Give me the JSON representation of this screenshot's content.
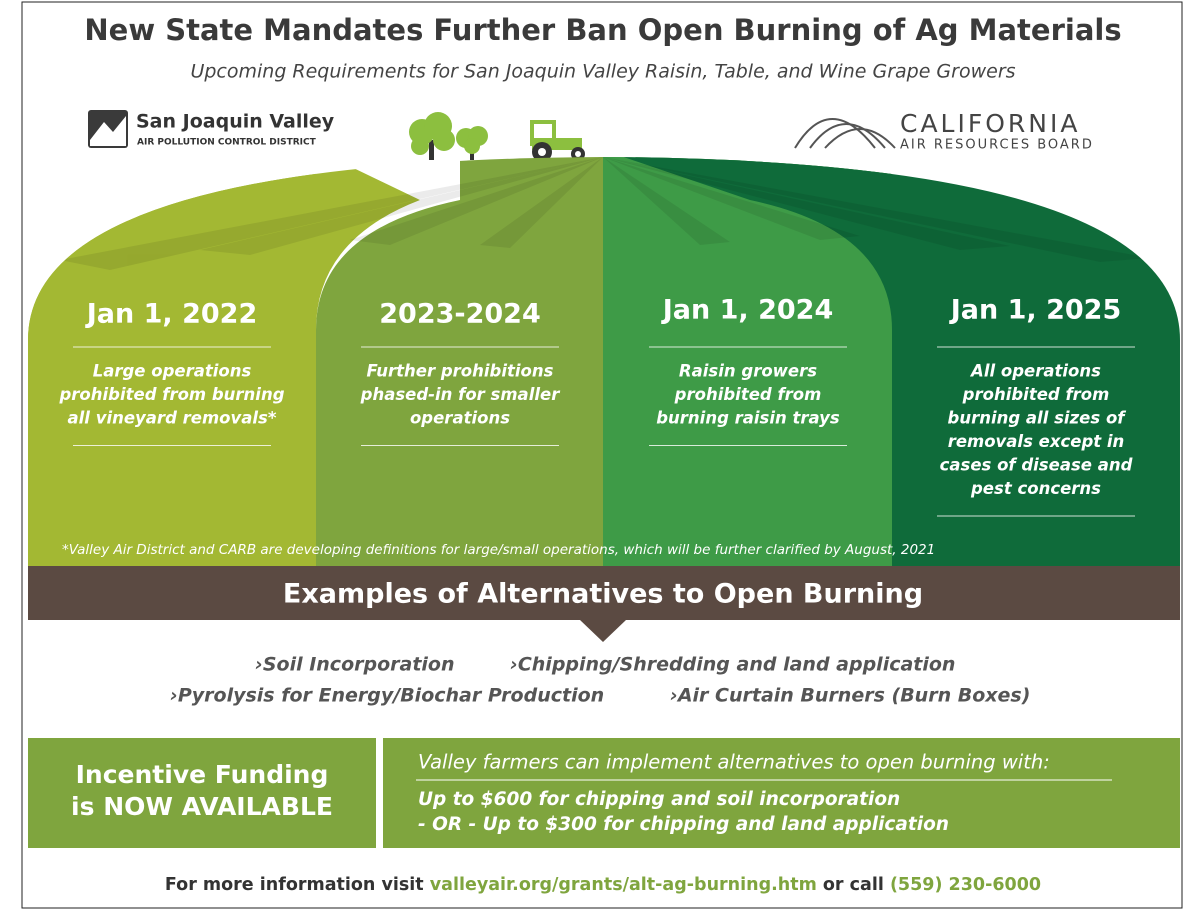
{
  "header": {
    "title": "New State Mandates Further Ban Open Burning of Ag Materials",
    "subtitle": "Upcoming Requirements for San Joaquin Valley Raisin, Table, and Wine Grape Growers"
  },
  "logos": {
    "left": {
      "name": "San Joaquin Valley",
      "sub": "AIR POLLUTION CONTROL DISTRICT"
    },
    "right": {
      "name": "CALIFORNIA",
      "sub": "AIR RESOURCES BOARD"
    }
  },
  "columns": [
    {
      "date": "Jan 1, 2022",
      "lines": [
        "Large operations",
        "prohibited from burning",
        "all vineyard removals*"
      ]
    },
    {
      "date": "2023-2024",
      "lines": [
        "Further prohibitions",
        "phased-in for smaller",
        "operations"
      ]
    },
    {
      "date": "Jan 1, 2024",
      "lines": [
        "Raisin growers",
        "prohibited from",
        "burning raisin trays"
      ]
    },
    {
      "date": "Jan 1, 2025",
      "lines": [
        "All operations",
        "prohibited from",
        "burning all sizes of",
        "removals except in",
        "cases of disease and",
        "pest concerns"
      ]
    }
  ],
  "footnote": "*Valley Air District and CARB are developing definitions for large/small operations, which will be further clarified by August, 2021",
  "alternatives": {
    "title": "Examples of Alternatives to Open Burning",
    "items": [
      "›Soil Incorporation",
      "›Chipping/Shredding and land application",
      "›Pyrolysis for Energy/Biochar Production",
      "›Air Curtain Burners (Burn Boxes)"
    ]
  },
  "funding": {
    "headline": [
      "Incentive Funding",
      "is NOW AVAILABLE"
    ],
    "intro": "Valley farmers can implement alternatives to open burning with:",
    "offers": [
      "Up to $600 for chipping and soil incorporation",
      "- OR - Up to $300 for chipping and land application"
    ]
  },
  "footer": {
    "text1": "For more information visit ",
    "link": "valleyair.org/grants/alt-ag-burning.htm",
    "text2": " or call ",
    "phone": "(559) 230-6000"
  }
}
